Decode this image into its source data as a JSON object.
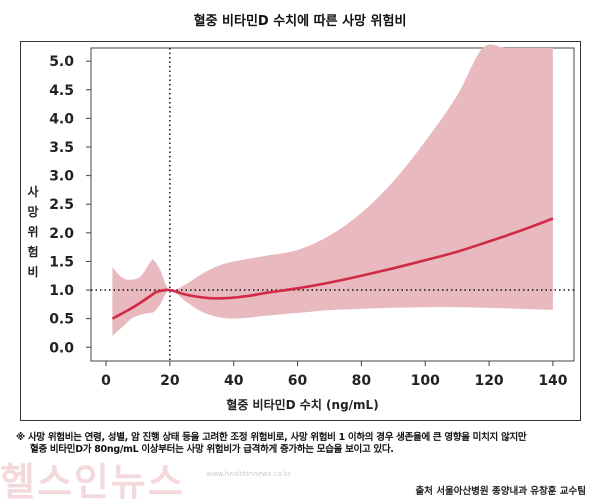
{
  "chart_data": {
    "type": "line",
    "title": "혈중 비타민D 수치에 따른 사망 위험비",
    "xlabel": "혈중 비타민D 수치 (ng/mL)",
    "ylabel": "사망 위험비",
    "xlim": [
      -4.7,
      146.6
    ],
    "ylim": [
      -0.24,
      5.23
    ],
    "xticks": [
      0,
      20,
      40,
      60,
      80,
      100,
      120,
      140
    ],
    "yticks": [
      "0.0",
      "0.5",
      "1.0",
      "1.5",
      "2.0",
      "2.5",
      "3.0",
      "3.5",
      "4.0",
      "4.5",
      "5.0"
    ],
    "reference_lines": {
      "x": 20,
      "y": 1.0
    },
    "series": [
      {
        "name": "사망 위험비",
        "color": "#d02a45",
        "x": [
          2,
          6,
          10,
          14,
          16,
          20,
          25,
          32,
          38,
          45,
          50,
          60,
          70,
          80,
          90,
          100,
          110,
          120,
          130,
          140
        ],
        "y": [
          0.5,
          0.62,
          0.75,
          0.9,
          0.97,
          1.0,
          0.92,
          0.86,
          0.86,
          0.9,
          0.95,
          1.03,
          1.13,
          1.25,
          1.38,
          1.52,
          1.67,
          1.85,
          2.04,
          2.25
        ]
      },
      {
        "name": "95% CI",
        "color": "#e8b9bf",
        "x": [
          2,
          5,
          8,
          11,
          14,
          15,
          17,
          20,
          25,
          30,
          35,
          40,
          45,
          50,
          60,
          70,
          80,
          90,
          100,
          110,
          118,
          125,
          130,
          140
        ],
        "upper": [
          1.4,
          1.22,
          1.18,
          1.25,
          1.5,
          1.52,
          1.35,
          1.0,
          1.1,
          1.28,
          1.42,
          1.5,
          1.55,
          1.6,
          1.7,
          1.95,
          2.35,
          2.9,
          3.6,
          4.4,
          5.23,
          5.23,
          5.23,
          5.23
        ],
        "lower": [
          0.2,
          0.35,
          0.5,
          0.57,
          0.6,
          0.62,
          0.75,
          1.0,
          0.8,
          0.62,
          0.53,
          0.5,
          0.52,
          0.55,
          0.6,
          0.65,
          0.67,
          0.69,
          0.7,
          0.7,
          0.69,
          0.68,
          0.67,
          0.65
        ]
      }
    ]
  },
  "footnote": {
    "line1": "※ 사망 위험비는 연령, 성별, 암 진행 상태 등을 고려한 조정 위험비로, 사망 위험비 1 이하의 경우 생존율에 큰 영향을 미치지 않지만",
    "line2": "혈중 비타민D가 80ng/mL 이상부터는 사망 위험비가 급격하게 증가하는 모습을 보이고 있다."
  },
  "watermark": {
    "text": "헬스인뉴스",
    "url": "www.healthinnews.co.kr"
  },
  "source": "출처 서울아산병원 종양내과 유창훈 교수팀"
}
